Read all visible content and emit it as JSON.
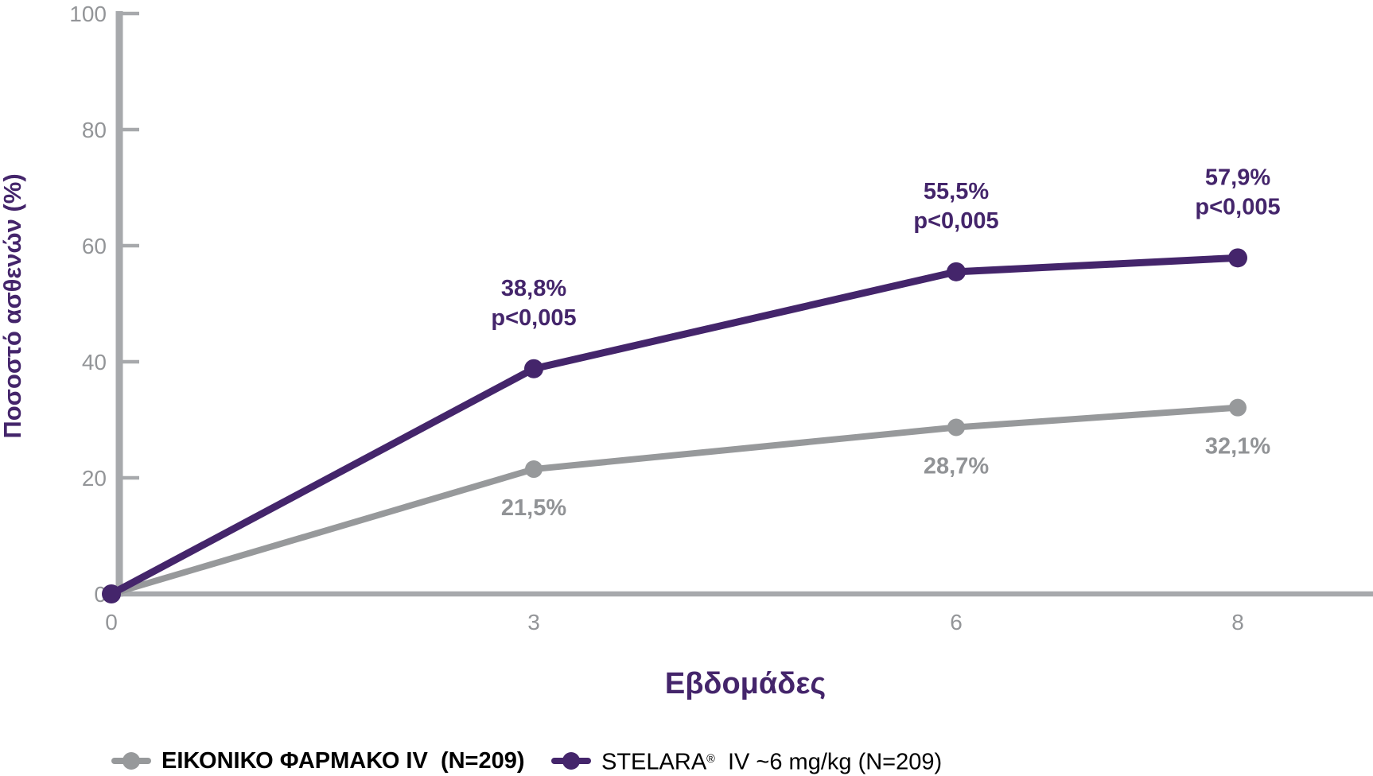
{
  "chart_data": {
    "type": "line",
    "x": [
      0,
      3,
      6,
      8
    ],
    "xlabel": "Εβδομάδες",
    "ylabel": "Ποσοστό ασθενών (%)",
    "xlim": [
      0,
      8.96
    ],
    "ylim": [
      0,
      100
    ],
    "yticks": [
      0,
      20,
      40,
      60,
      80,
      100
    ],
    "xticks": [
      0,
      3,
      6,
      8
    ],
    "grid": false,
    "legend_position": "bottom",
    "series": [
      {
        "id": "placebo",
        "name": "ΕΙΚΟΝΙΚΟ ΦΑΡΜΑΚΟ IV (N=209)",
        "color": "#97999b",
        "values": [
          0,
          21.5,
          28.7,
          32.1
        ],
        "point_labels": [
          "",
          "21,5%",
          "28,7%",
          "32,1%"
        ],
        "p_value_labels": [
          "",
          "",
          "",
          ""
        ],
        "label_side": "below"
      },
      {
        "id": "stelara",
        "name": "STELARA® IV ~6 mg/kg (N=209)",
        "color": "#44256b",
        "values": [
          0,
          38.8,
          55.5,
          57.9
        ],
        "point_labels": [
          "",
          "38,8%",
          "55,5%",
          "57,9%"
        ],
        "p_value_labels": [
          "",
          "p<0,005",
          "p<0,005",
          "p<0,005"
        ],
        "label_side": "above"
      }
    ]
  },
  "legend": {
    "items": [
      {
        "id": "placebo",
        "pre": "ΕΙΚΟΝΙΚΟ ΦΑΡΜΑΚΟ IV  (N=209)",
        "sup": "",
        "post": "",
        "color": "#97999b",
        "bold": true
      },
      {
        "id": "stelara",
        "pre": "STELARA",
        "sup": "®",
        "post": "  IV ~6 mg/kg (N=209)",
        "color": "#44256b",
        "bold": false
      }
    ]
  },
  "colors": {
    "background": "#ffffff",
    "axis_line": "#a7a9ac",
    "tick_label": "#939598",
    "gray_series": "#97999b",
    "purple_series": "#44256b",
    "gray_annotation": "#919396",
    "legend_text": "#000000"
  }
}
